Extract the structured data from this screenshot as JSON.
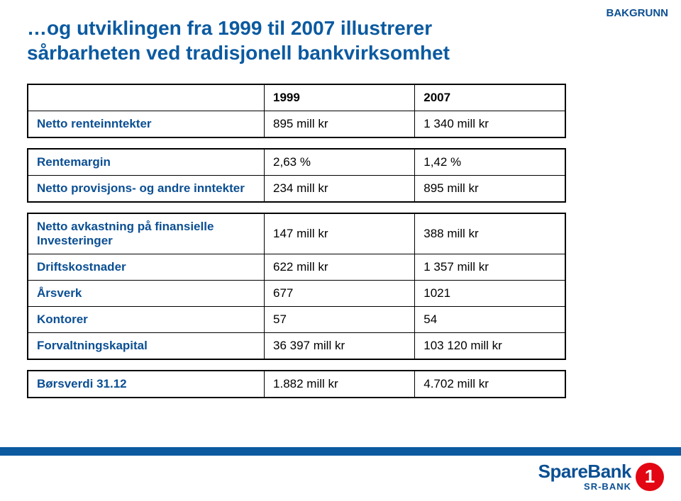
{
  "colors": {
    "title": "#0b5aa0",
    "corner": "#0b4f93",
    "label": "#0b4f93",
    "cell_text": "#000000",
    "border": "#000000",
    "footer_band": "#0b5aa0",
    "logo_text": "#0b4f93",
    "logo_icon_bg": "#e30613",
    "logo_icon_fg": "#ffffff"
  },
  "title": "…og utviklingen fra 1999 til 2007 illustrerer sårbarheten ved tradisjonell bankvirksomhet",
  "corner_label": "BAKGRUNN",
  "col_headers": {
    "label": "",
    "c1": "1999",
    "c2": "2007"
  },
  "block1": [
    {
      "label": "Netto renteinntekter",
      "c1": "895 mill kr",
      "c2": "1 340 mill kr"
    }
  ],
  "block2": [
    {
      "label": "Rentemargin",
      "c1": "2,63 %",
      "c2": "1,42 %"
    },
    {
      "label": "Netto provisjons- og andre inntekter",
      "c1": "234 mill kr",
      "c2": "895 mill kr"
    }
  ],
  "block3": [
    {
      "label": "Netto avkastning på finansielle Investeringer",
      "c1": "147 mill kr",
      "c2": "388 mill kr"
    },
    {
      "label": "Driftskostnader",
      "c1": "622 mill kr",
      "c2": "1 357 mill kr"
    },
    {
      "label": "Årsverk",
      "c1": "677",
      "c2": "1021"
    },
    {
      "label": "Kontorer",
      "c1": "57",
      "c2": "54"
    },
    {
      "label": "Forvaltningskapital",
      "c1": "36 397 mill kr",
      "c2": "103 120  mill kr"
    }
  ],
  "block4": [
    {
      "label": "Børsverdi 31.12",
      "c1": "1.882 mill kr",
      "c2": "4.702 mill kr"
    }
  ],
  "logo": {
    "main": "SpareBank",
    "sub": "SR-BANK",
    "icon_glyph": "1"
  }
}
